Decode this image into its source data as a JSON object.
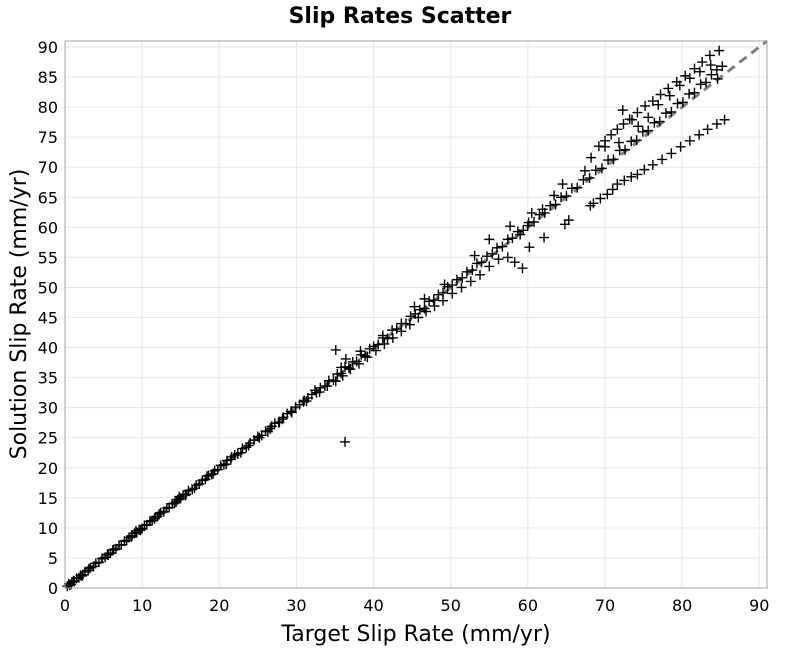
{
  "chart_data": {
    "type": "scatter",
    "title": "Slip Rates Scatter",
    "xlabel": "Target Slip Rate (mm/yr)",
    "ylabel": "Solution Slip Rate (mm/yr)",
    "xlim": [
      0,
      91
    ],
    "ylim": [
      0,
      91
    ],
    "xticks": [
      "0",
      "10",
      "20",
      "30",
      "40",
      "50",
      "60",
      "70",
      "80",
      "90"
    ],
    "yticks": [
      "0",
      "5",
      "10",
      "15",
      "20",
      "25",
      "30",
      "35",
      "40",
      "45",
      "50",
      "55",
      "60",
      "65",
      "70",
      "75",
      "80",
      "85",
      "90"
    ],
    "grid": true,
    "marker": "plus",
    "marker_color": "#000000",
    "reference_line": {
      "style": "dashed",
      "color": "#808080",
      "from": [
        0,
        0
      ],
      "to": [
        91,
        91
      ]
    },
    "series": [
      {
        "points": [
          [
            0.3,
            0.3
          ],
          [
            0.6,
            0.5
          ],
          [
            0.9,
            1.0
          ],
          [
            1.2,
            1.1
          ],
          [
            1.5,
            1.6
          ],
          [
            1.8,
            1.7
          ],
          [
            2.0,
            2.1
          ],
          [
            2.3,
            2.2
          ],
          [
            2.6,
            2.7
          ],
          [
            3.0,
            2.9
          ],
          [
            3.3,
            3.4
          ],
          [
            3.7,
            3.6
          ],
          [
            4.0,
            4.1
          ],
          [
            4.4,
            4.3
          ],
          [
            4.8,
            4.9
          ],
          [
            5.2,
            5.1
          ],
          [
            5.5,
            5.6
          ],
          [
            5.9,
            5.8
          ],
          [
            6.2,
            6.3
          ],
          [
            6.6,
            6.5
          ],
          [
            7.0,
            7.1
          ],
          [
            7.3,
            7.2
          ],
          [
            7.7,
            7.8
          ],
          [
            8.0,
            7.9
          ],
          [
            8.3,
            8.4
          ],
          [
            8.6,
            8.5
          ],
          [
            9.0,
            9.1
          ],
          [
            9.3,
            9.2
          ],
          [
            9.6,
            9.7
          ],
          [
            10.0,
            9.9
          ],
          [
            10.3,
            10.4
          ],
          [
            10.6,
            10.5
          ],
          [
            11.0,
            11.1
          ],
          [
            11.3,
            11.2
          ],
          [
            11.7,
            11.8
          ],
          [
            12.0,
            11.9
          ],
          [
            12.4,
            12.5
          ],
          [
            12.8,
            12.7
          ],
          [
            13.2,
            13.3
          ],
          [
            13.5,
            13.4
          ],
          [
            13.9,
            14.0
          ],
          [
            14.2,
            14.1
          ],
          [
            14.6,
            14.7
          ],
          [
            15.0,
            14.9
          ],
          [
            15.3,
            15.4
          ],
          [
            15.7,
            15.6
          ],
          [
            16.0,
            16.2
          ],
          [
            16.5,
            16.4
          ],
          [
            17.0,
            17.1
          ],
          [
            17.4,
            17.3
          ],
          [
            17.8,
            17.9
          ],
          [
            18.2,
            18.1
          ],
          [
            18.6,
            18.7
          ],
          [
            19.0,
            18.9
          ],
          [
            19.4,
            19.5
          ],
          [
            19.8,
            19.7
          ],
          [
            20.2,
            20.4
          ],
          [
            20.6,
            20.5
          ],
          [
            21.0,
            21.2
          ],
          [
            21.5,
            21.4
          ],
          [
            22.0,
            22.1
          ],
          [
            22.4,
            22.3
          ],
          [
            23.0,
            23.2
          ],
          [
            23.5,
            23.4
          ],
          [
            24.0,
            24.1
          ],
          [
            24.5,
            24.6
          ],
          [
            25.0,
            25.2
          ],
          [
            25.5,
            25.4
          ],
          [
            26.0,
            26.1
          ],
          [
            26.6,
            26.5
          ],
          [
            27.2,
            27.4
          ],
          [
            27.8,
            27.6
          ],
          [
            28.3,
            28.4
          ],
          [
            28.8,
            29.0
          ],
          [
            29.3,
            29.4
          ],
          [
            29.9,
            30.1
          ],
          [
            30.4,
            30.5
          ],
          [
            31.0,
            31.2
          ],
          [
            31.5,
            31.6
          ],
          [
            32.0,
            32.2
          ],
          [
            32.6,
            32.5
          ],
          [
            33.1,
            33.3
          ],
          [
            33.7,
            33.6
          ],
          [
            34.2,
            34.5
          ],
          [
            34.8,
            34.6
          ],
          [
            35.3,
            35.6
          ],
          [
            35.8,
            35.7
          ],
          [
            36.3,
            36.8
          ],
          [
            36.8,
            36.6
          ],
          [
            37.3,
            37.6
          ],
          [
            37.8,
            37.7
          ],
          [
            38.4,
            38.8
          ],
          [
            38.9,
            38.6
          ],
          [
            39.5,
            39.8
          ],
          [
            40.0,
            40.2
          ],
          [
            40.6,
            40.5
          ],
          [
            41.2,
            41.6
          ],
          [
            41.8,
            41.5
          ],
          [
            42.4,
            42.9
          ],
          [
            43.0,
            43.1
          ],
          [
            43.6,
            44.0
          ],
          [
            44.2,
            44.0
          ],
          [
            44.8,
            45.2
          ],
          [
            45.4,
            45.6
          ],
          [
            46.0,
            46.3
          ],
          [
            46.6,
            46.5
          ],
          [
            47.2,
            47.7
          ],
          [
            47.8,
            47.9
          ],
          [
            48.4,
            48.8
          ],
          [
            49.0,
            49.1
          ],
          [
            49.6,
            50.1
          ],
          [
            50.2,
            50.4
          ],
          [
            50.8,
            51.3
          ],
          [
            51.5,
            51.6
          ],
          [
            52.1,
            52.6
          ],
          [
            52.8,
            52.9
          ],
          [
            53.4,
            54.0
          ],
          [
            54.0,
            54.2
          ],
          [
            54.7,
            55.2
          ],
          [
            55.4,
            55.6
          ],
          [
            56.0,
            56.6
          ],
          [
            56.7,
            56.8
          ],
          [
            57.4,
            58.0
          ],
          [
            58.0,
            58.2
          ],
          [
            58.7,
            59.3
          ],
          [
            59.4,
            59.5
          ],
          [
            60.1,
            60.8
          ],
          [
            60.8,
            60.9
          ],
          [
            61.5,
            62.1
          ],
          [
            62.2,
            62.4
          ],
          [
            62.9,
            63.6
          ],
          [
            63.6,
            63.8
          ],
          [
            64.3,
            65.0
          ],
          [
            65.0,
            65.2
          ],
          [
            65.7,
            66.5
          ],
          [
            66.4,
            66.6
          ],
          [
            67.2,
            67.9
          ],
          [
            68.0,
            68.2
          ],
          [
            68.8,
            69.5
          ],
          [
            69.6,
            69.8
          ],
          [
            70.4,
            71.2
          ],
          [
            71.1,
            71.3
          ],
          [
            71.9,
            72.8
          ],
          [
            72.6,
            72.9
          ],
          [
            73.4,
            74.3
          ],
          [
            74.1,
            74.5
          ],
          [
            74.9,
            75.9
          ],
          [
            75.6,
            76.1
          ],
          [
            76.4,
            77.4
          ],
          [
            77.1,
            77.6
          ],
          [
            77.9,
            79.0
          ],
          [
            78.6,
            79.2
          ],
          [
            79.4,
            80.6
          ],
          [
            80.1,
            80.8
          ],
          [
            80.9,
            82.2
          ],
          [
            81.6,
            82.4
          ],
          [
            82.4,
            83.8
          ],
          [
            83.1,
            84.1
          ],
          [
            83.8,
            85.4
          ],
          [
            84.5,
            86.2
          ],
          [
            84.8,
            89.4
          ],
          [
            83.6,
            88.6
          ],
          [
            82.6,
            87.5
          ],
          [
            81.6,
            86.4
          ],
          [
            80.4,
            85.2
          ],
          [
            79.3,
            84.2
          ],
          [
            78.2,
            83.1
          ],
          [
            77.2,
            82.1
          ],
          [
            76.2,
            81.0
          ],
          [
            75.2,
            80.2
          ],
          [
            74.2,
            79.1
          ],
          [
            73.2,
            78.0
          ],
          [
            72.4,
            77.2
          ],
          [
            71.6,
            76.3
          ],
          [
            70.8,
            75.4
          ],
          [
            70.0,
            74.4
          ],
          [
            69.2,
            73.5
          ],
          [
            85.5,
            77.9
          ],
          [
            84.5,
            77.2
          ],
          [
            83.3,
            76.3
          ],
          [
            82.2,
            75.4
          ],
          [
            81.0,
            74.4
          ],
          [
            79.8,
            73.4
          ],
          [
            78.6,
            72.3
          ],
          [
            77.4,
            71.3
          ],
          [
            76.2,
            70.4
          ],
          [
            75.1,
            69.6
          ],
          [
            74.2,
            68.8
          ],
          [
            73.4,
            68.4
          ],
          [
            72.5,
            67.8
          ],
          [
            71.6,
            67.2
          ],
          [
            71.0,
            66.3
          ],
          [
            70.3,
            65.5
          ],
          [
            69.4,
            64.8
          ],
          [
            68.5,
            64.0
          ],
          [
            59.3,
            53.2
          ],
          [
            58.3,
            54.2
          ],
          [
            57.4,
            55.0
          ],
          [
            56.2,
            54.7
          ],
          [
            55.0,
            53.5
          ],
          [
            53.8,
            52.1
          ],
          [
            52.6,
            51.0
          ],
          [
            51.4,
            50.0
          ],
          [
            50.2,
            49.0
          ],
          [
            49.0,
            47.8
          ],
          [
            47.9,
            46.9
          ],
          [
            46.8,
            46.0
          ],
          [
            45.8,
            45.0
          ],
          [
            44.7,
            43.8
          ],
          [
            43.6,
            42.7
          ],
          [
            42.5,
            41.6
          ],
          [
            41.4,
            40.6
          ],
          [
            40.3,
            39.5
          ],
          [
            39.2,
            38.4
          ],
          [
            38.1,
            37.3
          ],
          [
            37.0,
            36.4
          ],
          [
            36.0,
            35.3
          ],
          [
            35.1,
            34.4
          ],
          [
            34.0,
            33.6
          ],
          [
            33.0,
            32.6
          ],
          [
            36.3,
            24.3
          ],
          [
            35.8,
            36.7
          ],
          [
            36.4,
            38.1
          ],
          [
            35.1,
            39.6
          ],
          [
            38.3,
            39.4
          ],
          [
            41.2,
            42.0
          ],
          [
            45.3,
            46.8
          ],
          [
            46.6,
            48.1
          ],
          [
            49.2,
            50.5
          ],
          [
            53.1,
            55.3
          ],
          [
            55.0,
            58.0
          ],
          [
            57.7,
            60.2
          ],
          [
            60.5,
            62.4
          ],
          [
            61.9,
            63.0
          ],
          [
            63.4,
            65.3
          ],
          [
            64.5,
            67.2
          ],
          [
            67.4,
            69.4
          ],
          [
            68.2,
            71.6
          ],
          [
            70.0,
            73.4
          ],
          [
            71.8,
            74.1
          ],
          [
            72.3,
            79.5
          ],
          [
            73.5,
            77.9
          ],
          [
            74.3,
            76.8
          ],
          [
            75.6,
            78.3
          ],
          [
            76.9,
            80.4
          ],
          [
            78.4,
            81.9
          ],
          [
            79.7,
            83.6
          ],
          [
            81.0,
            84.8
          ],
          [
            82.3,
            85.9
          ],
          [
            83.7,
            87.0
          ],
          [
            84.6,
            84.7
          ],
          [
            85.2,
            86.8
          ],
          [
            64.8,
            60.5
          ],
          [
            68.1,
            63.6
          ],
          [
            60.2,
            56.7
          ],
          [
            62.1,
            58.3
          ],
          [
            65.3,
            61.2
          ],
          [
            59.0,
            58.8
          ],
          [
            60.0,
            60.3
          ],
          [
            25.2,
            25.0
          ],
          [
            26.3,
            26.0
          ],
          [
            27.7,
            27.5
          ],
          [
            29.4,
            29.2
          ],
          [
            30.9,
            31.0
          ],
          [
            32.4,
            32.9
          ],
          [
            20.9,
            20.6
          ],
          [
            21.6,
            21.8
          ],
          [
            22.8,
            22.5
          ],
          [
            18.4,
            18.6
          ],
          [
            19.2,
            19.0
          ],
          [
            14.4,
            14.3
          ],
          [
            14.8,
            15.2
          ],
          [
            15.6,
            15.4
          ],
          [
            11.6,
            11.5
          ],
          [
            12.2,
            12.3
          ],
          [
            8.7,
            8.7
          ],
          [
            9.2,
            9.5
          ],
          [
            9.8,
            9.6
          ],
          [
            6.3,
            6.4
          ],
          [
            5.6,
            5.5
          ],
          [
            3.1,
            3.2
          ],
          [
            2.2,
            2.0
          ],
          [
            1.1,
            1.2
          ],
          [
            0.5,
            0.7
          ],
          [
            0.8,
            0.6
          ],
          [
            16.8,
            16.6
          ],
          [
            23.8,
            23.7
          ],
          [
            26.8,
            26.9
          ],
          [
            28.2,
            28.1
          ],
          [
            31.3,
            31.1
          ]
        ]
      }
    ]
  }
}
